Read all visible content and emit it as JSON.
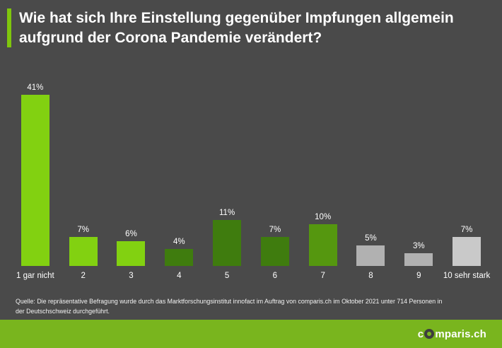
{
  "colors": {
    "background": "#4a4a4a",
    "accent_green": "#7fc60d",
    "bright_green": "#82d111",
    "dark_green": "#3f7c0e",
    "mid_green": "#55970f",
    "gray_bar": "#b1b1b1",
    "light_gray_bar": "#c9c9c9",
    "footer_green": "#79b51e",
    "text": "#ffffff"
  },
  "title": {
    "line1": "Wie hat sich Ihre Einstellung gegenüber Impfungen allgemein",
    "line2": "aufgrund der Corona Pandemie verändert?"
  },
  "chart_data": {
    "type": "bar",
    "categories": [
      "1 gar nicht",
      "2",
      "3",
      "4",
      "5",
      "6",
      "7",
      "8",
      "9",
      "10 sehr stark"
    ],
    "values": [
      41,
      7,
      6,
      4,
      11,
      7,
      10,
      5,
      3,
      7
    ],
    "value_labels": [
      "41%",
      "7%",
      "6%",
      "4%",
      "11%",
      "7%",
      "10%",
      "5%",
      "3%",
      "7%"
    ],
    "bar_colors": [
      "#82d111",
      "#82d111",
      "#82d111",
      "#3f7c0e",
      "#3f7c0e",
      "#3f7c0e",
      "#55970f",
      "#b1b1b1",
      "#b1b1b1",
      "#c9c9c9"
    ],
    "title": "Wie hat sich Ihre Einstellung gegenüber Impfungen allgemein aufgrund der Corona Pandemie verändert?",
    "xlabel": "",
    "ylabel": "",
    "ylim": [
      0,
      45
    ],
    "grid": false,
    "legend": false,
    "value_label_position": "above bars"
  },
  "source": {
    "text": "Quelle: Die repräsentative Befragung wurde durch das Marktforschungsinstitut innofact im Auftrag von comparis.ch im Oktober 2021 unter 714 Personen in der Deutschschweiz durchgeführt."
  },
  "footer": {
    "logo_prefix": "c",
    "logo_suffix": "mparis.ch",
    "logo_full": "comparis.ch"
  }
}
